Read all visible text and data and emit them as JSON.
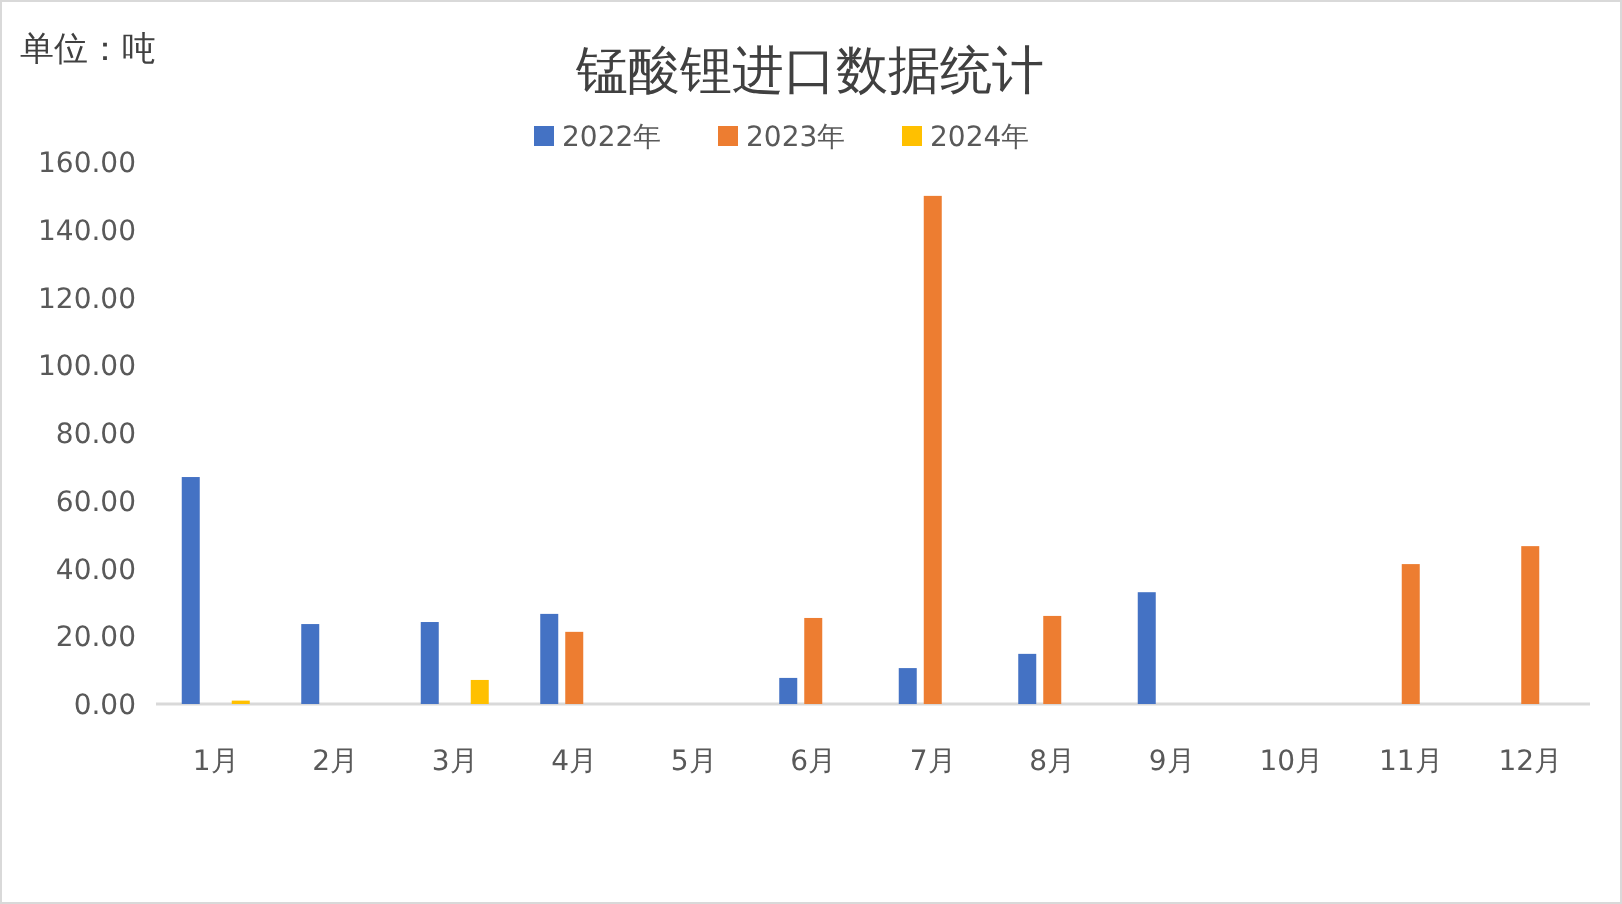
{
  "chart_data": {
    "type": "bar",
    "title": "锰酸锂进口数据统计",
    "ylabel": "单位：吨",
    "categories": [
      "1月",
      "2月",
      "3月",
      "4月",
      "5月",
      "6月",
      "7月",
      "8月",
      "9月",
      "10月",
      "11月",
      "12月"
    ],
    "series": [
      {
        "name": "2022年",
        "color": "#4472c4",
        "values": [
          67,
          23.6,
          24.2,
          26.6,
          null,
          7.7,
          10.6,
          14.8,
          33,
          null,
          null,
          null
        ]
      },
      {
        "name": "2023年",
        "color": "#ed7d31",
        "values": [
          null,
          null,
          null,
          21.3,
          null,
          25.4,
          150,
          26,
          null,
          null,
          41.3,
          46.6
        ]
      },
      {
        "name": "2024年",
        "color": "#ffc000",
        "values": [
          1,
          null,
          7.1,
          null,
          null,
          null,
          null,
          null,
          null,
          null,
          null,
          null
        ]
      }
    ],
    "ylim": [
      0,
      160
    ],
    "yticks": [
      {
        "value": 0,
        "label": "0.00"
      },
      {
        "value": 20,
        "label": "20.00"
      },
      {
        "value": 40,
        "label": "40.00"
      },
      {
        "value": 60,
        "label": "60.00"
      },
      {
        "value": 80,
        "label": "80.00"
      },
      {
        "value": 100,
        "label": "100.00"
      },
      {
        "value": 120,
        "label": "120.00"
      },
      {
        "value": 140,
        "label": "140.00"
      },
      {
        "value": 160,
        "label": "160.00"
      }
    ],
    "legend": "top",
    "grid": false
  }
}
